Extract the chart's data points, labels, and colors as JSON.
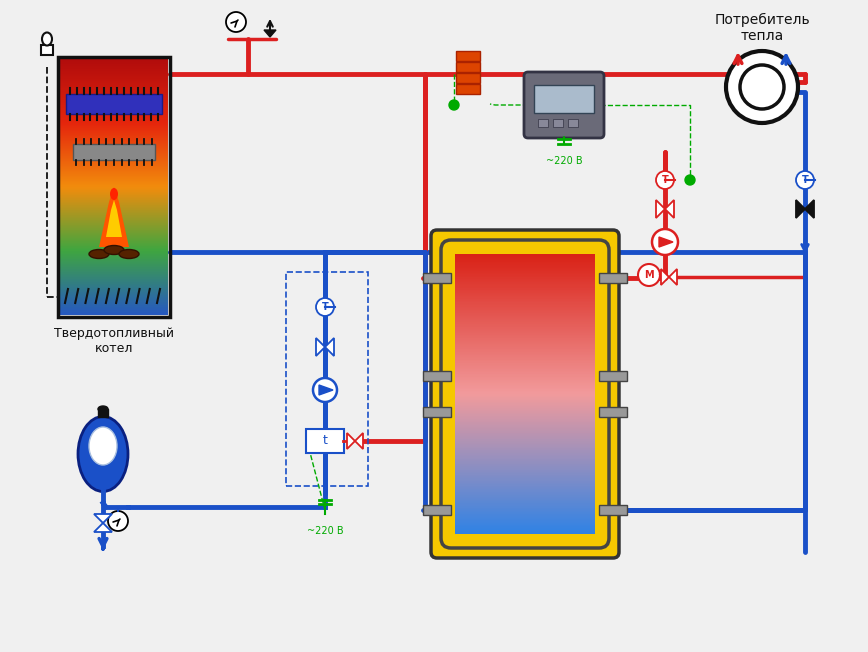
{
  "bg": "#f0f0f0",
  "red": "#dc2020",
  "blue": "#1a50c8",
  "green": "#00aa00",
  "dark": "#111111",
  "yellow": "#f5c800",
  "gray": "#777777",
  "orange": "#dd4400",
  "label_boiler": "Твердотопливный\nкотел",
  "label_consumer": "Потребитель\nтепла",
  "label_220v_1": "~220 В",
  "label_220v_2": "~220 В"
}
